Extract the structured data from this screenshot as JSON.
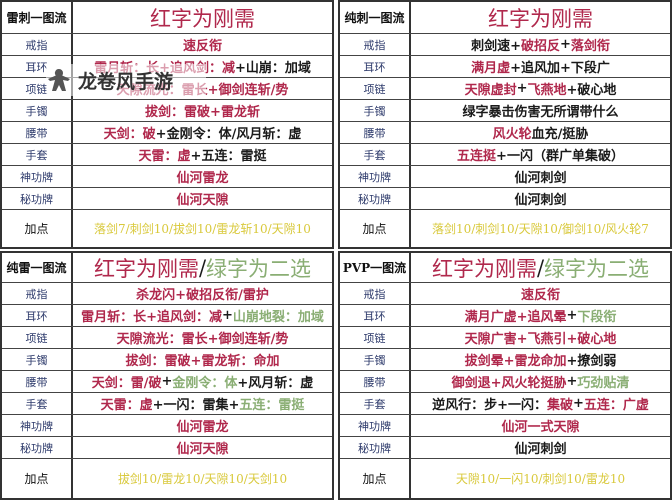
{
  "colors": {
    "r": "#b0284c",
    "k": "#1a1a1a",
    "g": "#8aae74",
    "y": "#d9c93c",
    "label": "#2d3a6b"
  },
  "watermark": {
    "text": "龙卷风手游",
    "icon": "meeple-icon"
  },
  "tables": [
    {
      "title": "雷刺一图流",
      "header": [
        [
          "红字为刚需",
          "r"
        ]
      ],
      "rows": [
        {
          "label": "戒指",
          "value": [
            [
              "速反衔",
              "r"
            ]
          ]
        },
        {
          "label": "耳环",
          "value": [
            [
              "雷月斩：长+追风剑：减",
              "r"
            ],
            [
              "+山崩：加域",
              "k"
            ]
          ]
        },
        {
          "label": "项链",
          "value": [
            [
              "天隙流光：雷长+御剑连斩/势",
              "r"
            ]
          ]
        },
        {
          "label": "手镯",
          "value": [
            [
              "拔剑：雷破+雷龙斩",
              "r"
            ]
          ]
        },
        {
          "label": "腰带",
          "value": [
            [
              "天剑：破",
              "r"
            ],
            [
              "+金刚令：体/风月斩：虚",
              "k"
            ]
          ]
        },
        {
          "label": "手套",
          "value": [
            [
              "天雷：虚",
              "r"
            ],
            [
              "+五连：雷挺",
              "k"
            ]
          ]
        },
        {
          "label": "神功牌",
          "value": [
            [
              "仙河雷龙",
              "r"
            ]
          ]
        },
        {
          "label": "秘功牌",
          "value": [
            [
              "仙河天隙",
              "r"
            ]
          ]
        },
        {
          "label": "加点",
          "value": [
            [
              "落剑7/刺剑10/拔剑10/雷龙斩10/天隙10",
              "y"
            ]
          ]
        }
      ]
    },
    {
      "title": "纯刺一图流",
      "header": [
        [
          "红字为刚需",
          "r"
        ]
      ],
      "rows": [
        {
          "label": "戒指",
          "value": [
            [
              "刺剑速+",
              "k"
            ],
            [
              "破招反",
              "r"
            ],
            [
              "+",
              "k"
            ],
            [
              "落剑衔",
              "r"
            ]
          ]
        },
        {
          "label": "耳环",
          "value": [
            [
              "满月虚",
              "r"
            ],
            [
              "+追风加+下段广",
              "k"
            ]
          ]
        },
        {
          "label": "项链",
          "value": [
            [
              "天隙虚封",
              "r"
            ],
            [
              "+",
              "k"
            ],
            [
              "飞燕地",
              "r"
            ],
            [
              "+破心地",
              "k"
            ]
          ]
        },
        {
          "label": "手镯",
          "value": [
            [
              "绿字暴击伤害无所谓带什么",
              "k"
            ]
          ]
        },
        {
          "label": "腰带",
          "value": [
            [
              "风火轮",
              "r"
            ],
            [
              "血充/挺胁",
              "k"
            ]
          ]
        },
        {
          "label": "手套",
          "value": [
            [
              "五连挺",
              "r"
            ],
            [
              "+一闪（群广单集破）",
              "k"
            ]
          ]
        },
        {
          "label": "神功牌",
          "value": [
            [
              "仙河刺剑",
              "k"
            ]
          ]
        },
        {
          "label": "秘功牌",
          "value": [
            [
              "仙河刺剑",
              "k"
            ]
          ]
        },
        {
          "label": "加点",
          "value": [
            [
              "落剑10/刺剑10/天隙10/御剑10/风火轮7",
              "y"
            ]
          ]
        }
      ]
    },
    {
      "title": "纯雷一图流",
      "header": [
        [
          "红字为刚需",
          "r"
        ],
        [
          "/",
          "k"
        ],
        [
          "绿字为二选",
          "g"
        ]
      ],
      "rows": [
        {
          "label": "戒指",
          "value": [
            [
              "杀龙闪+破招反衔/雷护",
              "r"
            ]
          ]
        },
        {
          "label": "耳环",
          "value": [
            [
              "雷月斩：长+追风剑：减",
              "r"
            ],
            [
              "+",
              "k"
            ],
            [
              "山崩地裂：加域",
              "g"
            ]
          ]
        },
        {
          "label": "项链",
          "value": [
            [
              "天隙流光：雷长+御剑连斩/势",
              "r"
            ]
          ]
        },
        {
          "label": "手镯",
          "value": [
            [
              "拔剑：雷破+雷龙斩：命加",
              "r"
            ]
          ]
        },
        {
          "label": "腰带",
          "value": [
            [
              "天剑：雷/破",
              "r"
            ],
            [
              "+",
              "k"
            ],
            [
              "金刚令：体",
              "g"
            ],
            [
              "+风月斩：虚",
              "k"
            ]
          ]
        },
        {
          "label": "手套",
          "value": [
            [
              "天雷：虚",
              "r"
            ],
            [
              "+一闪：雷集+",
              "k"
            ],
            [
              "五连：雷挺",
              "g"
            ]
          ]
        },
        {
          "label": "神功牌",
          "value": [
            [
              "仙河雷龙",
              "r"
            ]
          ]
        },
        {
          "label": "秘功牌",
          "value": [
            [
              "仙河天隙",
              "r"
            ]
          ]
        },
        {
          "label": "加点",
          "value": [
            [
              "拔剑10/雷龙10/天隙10/天剑10",
              "y"
            ]
          ]
        }
      ]
    },
    {
      "title": "PVP一图流",
      "header": [
        [
          "红字为刚需",
          "r"
        ],
        [
          "/",
          "k"
        ],
        [
          "绿字为二选",
          "g"
        ]
      ],
      "rows": [
        {
          "label": "戒指",
          "value": [
            [
              "速反衔",
              "r"
            ]
          ]
        },
        {
          "label": "耳环",
          "value": [
            [
              "满月广虚+追风晕",
              "r"
            ],
            [
              "+",
              "k"
            ],
            [
              "下段衔",
              "g"
            ]
          ]
        },
        {
          "label": "项链",
          "value": [
            [
              "天隙广害+飞燕引+破心地",
              "r"
            ]
          ]
        },
        {
          "label": "手镯",
          "value": [
            [
              "拔剑晕+雷龙命加",
              "r"
            ],
            [
              "+撩剑弱",
              "k"
            ]
          ]
        },
        {
          "label": "腰带",
          "value": [
            [
              "御剑退+风火轮挺胁",
              "r"
            ],
            [
              "+",
              "k"
            ],
            [
              "巧劲贴清",
              "g"
            ]
          ]
        },
        {
          "label": "手套",
          "value": [
            [
              "逆风行：步+一闪：",
              "k"
            ],
            [
              "集破",
              "r"
            ],
            [
              "+",
              "k"
            ],
            [
              "五连：广虚",
              "r"
            ]
          ]
        },
        {
          "label": "神功牌",
          "value": [
            [
              "仙河一式天隙",
              "r"
            ]
          ]
        },
        {
          "label": "秘功牌",
          "value": [
            [
              "仙河刺剑",
              "k"
            ]
          ]
        },
        {
          "label": "加点",
          "value": [
            [
              "天隙10/一闪10/刺剑10/雷龙10",
              "y"
            ]
          ]
        }
      ]
    }
  ]
}
